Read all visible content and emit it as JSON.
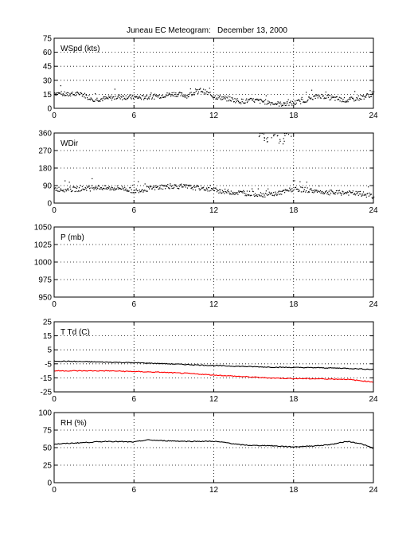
{
  "title": "Juneau EC Meteogram:   December 13, 2000",
  "colors": {
    "background": "#ffffff",
    "axes": "#000000",
    "grid": "#000000",
    "series_black": "#000000",
    "series_red": "#ff0000"
  },
  "chart_data": [
    {
      "type": "scatter",
      "panel_label": "WSpd (kts)",
      "xlim": [
        0,
        24
      ],
      "ylim": [
        0,
        75
      ],
      "xticks": [
        0,
        6,
        12,
        18,
        24
      ],
      "yticks": [
        0,
        15,
        30,
        45,
        60,
        75
      ],
      "grid": true,
      "series": [
        {
          "color": "#000000",
          "x": [
            0,
            1,
            2,
            3,
            4,
            5,
            6,
            7,
            8,
            9,
            10,
            11,
            12,
            13,
            14,
            15,
            16,
            17,
            18,
            19,
            20,
            21,
            22,
            23,
            24
          ],
          "y": [
            17,
            15,
            16,
            10,
            11,
            13,
            12,
            12,
            14,
            16,
            14,
            20,
            13,
            11,
            8,
            9,
            7,
            5,
            6,
            10,
            14,
            11,
            9,
            12,
            16
          ]
        }
      ]
    },
    {
      "type": "scatter",
      "panel_label": "WDir",
      "xlim": [
        0,
        24
      ],
      "ylim": [
        0,
        360
      ],
      "xticks": [
        0,
        6,
        12,
        18,
        24
      ],
      "yticks": [
        0,
        90,
        180,
        270,
        360
      ],
      "grid": true,
      "series": [
        {
          "color": "#000000",
          "x": [
            0,
            1,
            2,
            3,
            4,
            5,
            6,
            7,
            8,
            9,
            10,
            11,
            12,
            13,
            14,
            15,
            16,
            17,
            18,
            19,
            20,
            21,
            22,
            23,
            24
          ],
          "y": [
            75,
            72,
            75,
            85,
            78,
            80,
            65,
            75,
            85,
            90,
            85,
            80,
            70,
            60,
            55,
            50,
            45,
            55,
            75,
            70,
            60,
            55,
            55,
            50,
            40
          ]
        },
        {
          "color": "#000000",
          "x": [
            15.5,
            16,
            16.5,
            17,
            17.5
          ],
          "y": [
            350,
            330,
            345,
            320,
            355
          ]
        }
      ]
    },
    {
      "type": "line",
      "panel_label": "P (mb)",
      "xlim": [
        0,
        24
      ],
      "ylim": [
        950,
        1050
      ],
      "xticks": [
        0,
        6,
        12,
        18,
        24
      ],
      "yticks": [
        950,
        975,
        1000,
        1025,
        1050
      ],
      "grid": true,
      "series": []
    },
    {
      "type": "line",
      "panel_label": "T Td (C)",
      "xlim": [
        0,
        24
      ],
      "ylim": [
        -25,
        25
      ],
      "xticks": [
        0,
        6,
        12,
        18,
        24
      ],
      "yticks": [
        -25,
        -15,
        -5,
        5,
        15,
        25
      ],
      "grid": true,
      "series": [
        {
          "color": "#000000",
          "x": [
            0,
            2,
            4,
            6,
            8,
            10,
            12,
            14,
            16,
            18,
            20,
            22,
            24
          ],
          "y": [
            -3,
            -3.4,
            -3.8,
            -4.2,
            -4.8,
            -5.5,
            -6.2,
            -6.8,
            -7.3,
            -7.6,
            -7.8,
            -8.2,
            -9
          ]
        },
        {
          "color": "#ff0000",
          "x": [
            0,
            2,
            4,
            6,
            8,
            10,
            12,
            14,
            16,
            18,
            20,
            22,
            24
          ],
          "y": [
            -10,
            -10,
            -10,
            -10.5,
            -11,
            -11.8,
            -13,
            -14,
            -15,
            -15.5,
            -15.7,
            -16,
            -18
          ]
        }
      ]
    },
    {
      "type": "line",
      "panel_label": "RH (%)",
      "xlim": [
        0,
        24
      ],
      "ylim": [
        0,
        100
      ],
      "xticks": [
        0,
        6,
        12,
        18,
        24
      ],
      "yticks": [
        0,
        25,
        50,
        75,
        100
      ],
      "grid": true,
      "series": [
        {
          "color": "#000000",
          "x": [
            0,
            2,
            4,
            6,
            7,
            8,
            10,
            12,
            13,
            14,
            15,
            16,
            17,
            18,
            19,
            20,
            21,
            22,
            23,
            24
          ],
          "y": [
            55,
            57,
            59,
            58,
            61,
            60,
            59,
            59,
            57,
            54,
            53,
            53,
            52,
            51,
            52,
            53,
            55,
            59,
            56,
            49
          ]
        }
      ]
    }
  ]
}
